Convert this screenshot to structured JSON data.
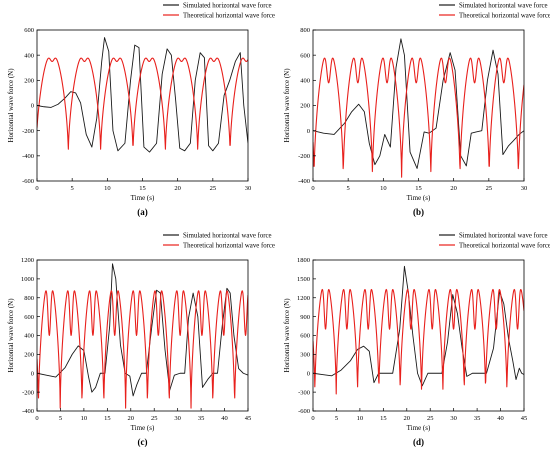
{
  "figure": {
    "series_colors": {
      "simulated": "#1a1a1a",
      "theoretical": "#e8201c"
    }
  },
  "chart_data": [
    {
      "id": "a",
      "type": "line",
      "panel_label": "(a)",
      "xlabel": "Time (s)",
      "ylabel": "Horizontal wave force (N)",
      "xlim": [
        0,
        30
      ],
      "ylim": [
        -600,
        600
      ],
      "xticks": [
        0,
        5,
        10,
        15,
        20,
        25,
        30
      ],
      "yticks": [
        -600,
        -400,
        -200,
        0,
        200,
        400,
        600
      ],
      "legend_position": "top-right",
      "grid": false,
      "series": [
        {
          "name": "Simulated horizontal wave force",
          "color": "#1a1a1a",
          "x": [
            0,
            1,
            2,
            3,
            4,
            4.8,
            5.5,
            6.2,
            7,
            7.8,
            8.5,
            9.2,
            9.6,
            10.2,
            10.8,
            11.5,
            12.5,
            13.3,
            13.9,
            14.5,
            15.2,
            16,
            17,
            17.8,
            18.5,
            19.1,
            19.7,
            20.3,
            21,
            21.8,
            22.5,
            23.2,
            23.8,
            24.4,
            25,
            25.8,
            26.6,
            27.4,
            28.2,
            28.9,
            29.4,
            30
          ],
          "y": [
            0,
            -10,
            -15,
            10,
            60,
            110,
            100,
            20,
            -230,
            -330,
            -100,
            350,
            540,
            430,
            -200,
            -360,
            -300,
            200,
            480,
            460,
            -330,
            -370,
            -300,
            250,
            450,
            400,
            50,
            -340,
            -360,
            -300,
            200,
            420,
            380,
            -320,
            -360,
            -300,
            80,
            200,
            350,
            420,
            0,
            -300
          ]
        },
        {
          "name": "Theoretical horizontal wave force",
          "color": "#e8201c",
          "type": "wave",
          "period": 4.6,
          "phase": -0.15,
          "max": 420,
          "min": -380,
          "dip": 350,
          "xstart": 0,
          "xend": 30
        }
      ]
    },
    {
      "id": "b",
      "type": "line",
      "panel_label": "(b)",
      "xlabel": "Time (s)",
      "ylabel": "Horizontal wave force (N)",
      "xlim": [
        0,
        30
      ],
      "ylim": [
        -400,
        800
      ],
      "xticks": [
        0,
        5,
        10,
        15,
        20,
        25,
        30
      ],
      "yticks": [
        -400,
        -200,
        0,
        200,
        400,
        600,
        800
      ],
      "legend_position": "top-right",
      "grid": false,
      "series": [
        {
          "name": "Simulated horizontal wave force",
          "color": "#1a1a1a",
          "x": [
            0,
            1.5,
            3,
            4.5,
            5.5,
            6.5,
            7.3,
            8,
            8.8,
            9.5,
            10.2,
            11,
            11.8,
            12.5,
            13,
            13.8,
            14.8,
            15.8,
            16.5,
            17.5,
            18.5,
            19.5,
            20.2,
            21,
            21.8,
            22.5,
            23.2,
            24,
            24.8,
            25.6,
            26.3,
            27,
            27.8,
            28.5,
            29.3,
            30
          ],
          "y": [
            0,
            -20,
            -30,
            60,
            150,
            210,
            150,
            -100,
            -270,
            -200,
            -30,
            -130,
            500,
            730,
            600,
            -170,
            -300,
            -10,
            -20,
            20,
            400,
            620,
            480,
            -200,
            -280,
            -20,
            -10,
            0,
            400,
            640,
            450,
            -190,
            -120,
            -80,
            -30,
            0
          ]
        },
        {
          "name": "Theoretical horizontal wave force",
          "color": "#e8201c",
          "type": "wave",
          "period": 4.15,
          "phase": 0.15,
          "max": 660,
          "min": -370,
          "dip": 380,
          "xstart": 0,
          "xend": 30
        }
      ]
    },
    {
      "id": "c",
      "type": "line",
      "panel_label": "(c)",
      "xlabel": "Time (s)",
      "ylabel": "Horizontal wave force (N)",
      "xlim": [
        0,
        45
      ],
      "ylim": [
        -400,
        1200
      ],
      "xticks": [
        0,
        5,
        10,
        15,
        20,
        25,
        30,
        35,
        40,
        45
      ],
      "yticks": [
        -400,
        -200,
        0,
        200,
        400,
        600,
        800,
        1000,
        1200
      ],
      "legend_position": "top-right",
      "grid": false,
      "series": [
        {
          "name": "Simulated horizontal wave force",
          "color": "#1a1a1a",
          "x": [
            0,
            2,
            4,
            6,
            7.5,
            8.8,
            10,
            11,
            11.7,
            12.5,
            13.5,
            14.5,
            15.5,
            16.1,
            16.8,
            17.8,
            18.8,
            19.8,
            20.5,
            21.3,
            22.3,
            23.3,
            24.5,
            25.5,
            26.3,
            27.3,
            28.3,
            29.3,
            30.5,
            31.5,
            32.3,
            33.3,
            34.3,
            35.3,
            36.5,
            37.5,
            38.5,
            39.5,
            40.5,
            41.2,
            42,
            43,
            44,
            45
          ],
          "y": [
            0,
            -20,
            -40,
            60,
            200,
            290,
            240,
            -40,
            -200,
            -150,
            0,
            0,
            500,
            1160,
            1000,
            300,
            0,
            -30,
            -240,
            -120,
            0,
            0,
            500,
            880,
            850,
            250,
            -180,
            -20,
            0,
            0,
            580,
            850,
            600,
            -150,
            -60,
            0,
            0,
            500,
            900,
            850,
            400,
            50,
            0,
            -20
          ]
        },
        {
          "name": "Theoretical horizontal wave force",
          "color": "#e8201c",
          "type": "wave",
          "period": 4.65,
          "phase": 0.3,
          "max": 1000,
          "min": -370,
          "dip": 400,
          "xstart": 0,
          "xend": 45
        }
      ]
    },
    {
      "id": "d",
      "type": "line",
      "panel_label": "(d)",
      "xlabel": "Time (s)",
      "ylabel": "Horizontal wave force (N)",
      "xlim": [
        0,
        45
      ],
      "ylim": [
        -600,
        1800
      ],
      "xticks": [
        0,
        5,
        10,
        15,
        20,
        25,
        30,
        35,
        40,
        45
      ],
      "yticks": [
        -600,
        -300,
        0,
        300,
        600,
        900,
        1200,
        1500,
        1800
      ],
      "legend_position": "top-right",
      "grid": false,
      "series": [
        {
          "name": "Simulated horizontal wave force",
          "color": "#1a1a1a",
          "x": [
            0,
            2,
            4,
            6,
            8,
            9.5,
            10.8,
            12,
            13,
            14,
            15.5,
            17,
            18.5,
            19.5,
            20.3,
            21.3,
            22.3,
            23.3,
            24.5,
            26,
            27.5,
            28.7,
            29.8,
            30.8,
            31.8,
            32.8,
            34,
            35.5,
            37,
            38.5,
            39.8,
            40.7,
            41.7,
            42.6,
            43.3,
            44,
            44.5,
            45
          ],
          "y": [
            0,
            -20,
            -40,
            50,
            200,
            380,
            430,
            350,
            -150,
            0,
            0,
            0,
            700,
            1700,
            1300,
            600,
            0,
            -200,
            0,
            0,
            0,
            500,
            1250,
            950,
            400,
            -50,
            0,
            0,
            0,
            400,
            1300,
            1100,
            550,
            200,
            -100,
            80,
            0,
            -20
          ]
        },
        {
          "name": "Theoretical horizontal wave force",
          "color": "#e8201c",
          "type": "wave",
          "period": 4.55,
          "phase": 0.4,
          "max": 1500,
          "min": -330,
          "dip": 700,
          "xstart": 0,
          "xend": 45
        }
      ]
    }
  ]
}
